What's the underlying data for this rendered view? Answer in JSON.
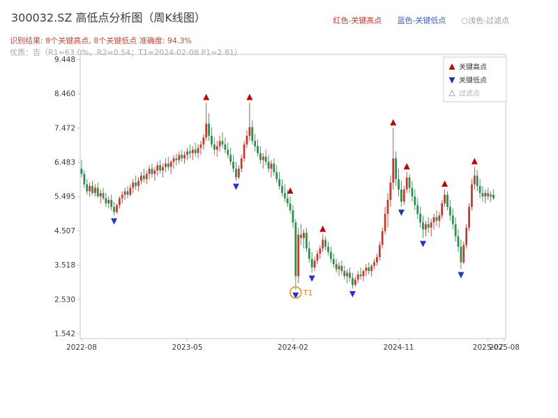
{
  "header": {
    "title": "300032.SZ 高低点分析图（周K线图）",
    "legend": [
      {
        "label": "红色-关键高点",
        "color": "#c0392b"
      },
      {
        "label": "蓝色-关键低点",
        "color": "#3a5fcd"
      },
      {
        "label": "○浅色-过滤点",
        "color": "#9a9a9a"
      }
    ],
    "result_line": "识别结果: 8个关键高点, 8个关键低点  准确度: 94.3%",
    "quality_line": "优质：否（R1=63.0%，R2=0.54；T1=2024-02-08 P1=2.81）"
  },
  "plot_legend": [
    {
      "label": "关键高点",
      "marker": "triangle-up",
      "color": "#c40000",
      "text_color": "#333333"
    },
    {
      "label": "关键低点",
      "marker": "triangle-down",
      "color": "#2433c8",
      "text_color": "#333333"
    },
    {
      "label": "过滤点",
      "marker": "triangle-up-outline",
      "color": "#aaaaaa",
      "text_color": "#b0b0b0"
    }
  ],
  "chart_data": {
    "type": "candlestick",
    "title": "300032.SZ 高低点分析图（周K线图）",
    "ylim": [
      1.542,
      9.448
    ],
    "y_ticks": [
      9.448,
      8.46,
      7.472,
      6.483,
      5.495,
      4.507,
      3.518,
      2.53,
      1.542
    ],
    "x_ticks": [
      {
        "label": "2022-08",
        "index": 0
      },
      {
        "label": "2023-05",
        "index": 39
      },
      {
        "label": "2024-02",
        "index": 78
      },
      {
        "label": "2024-11",
        "index": 117
      },
      {
        "label": "2025-07",
        "index": 150
      },
      {
        "label": "2025-08",
        "index": 156
      }
    ],
    "colors": {
      "up": "#c23b2e",
      "down": "#2f8f4e",
      "high_marker": "#c40000",
      "low_marker": "#2433c8",
      "t1": "#e8a33d",
      "t1_text": "#d9861f",
      "axis": "#c4c4c4",
      "tick_text": "#3a3a3a"
    },
    "key_highs": [
      46,
      62,
      77,
      89,
      115,
      120,
      134,
      145
    ],
    "key_lows": [
      12,
      57,
      79,
      85,
      100,
      118,
      126,
      140
    ],
    "t1": {
      "index": 79,
      "price": 2.81,
      "label": "T1"
    },
    "candles": [
      [
        6.3,
        6.55,
        6.05,
        6.15
      ],
      [
        6.15,
        6.25,
        5.75,
        5.85
      ],
      [
        5.85,
        6.0,
        5.55,
        5.65
      ],
      [
        5.65,
        5.9,
        5.5,
        5.8
      ],
      [
        5.8,
        5.95,
        5.55,
        5.6
      ],
      [
        5.6,
        5.85,
        5.5,
        5.75
      ],
      [
        5.75,
        5.9,
        5.45,
        5.5
      ],
      [
        5.5,
        5.7,
        5.3,
        5.6
      ],
      [
        5.6,
        5.75,
        5.4,
        5.45
      ],
      [
        5.45,
        5.6,
        5.2,
        5.3
      ],
      [
        5.3,
        5.5,
        5.15,
        5.4
      ],
      [
        5.4,
        5.55,
        5.1,
        5.2
      ],
      [
        5.2,
        5.35,
        4.95,
        5.05
      ],
      [
        5.05,
        5.3,
        5.0,
        5.25
      ],
      [
        5.25,
        5.5,
        5.15,
        5.45
      ],
      [
        5.45,
        5.65,
        5.3,
        5.55
      ],
      [
        5.55,
        5.75,
        5.4,
        5.65
      ],
      [
        5.65,
        5.8,
        5.45,
        5.55
      ],
      [
        5.55,
        5.85,
        5.5,
        5.75
      ],
      [
        5.75,
        6.0,
        5.6,
        5.9
      ],
      [
        5.9,
        6.1,
        5.7,
        5.8
      ],
      [
        5.8,
        6.05,
        5.65,
        5.95
      ],
      [
        5.95,
        6.2,
        5.85,
        6.1
      ],
      [
        6.1,
        6.3,
        5.9,
        6.0
      ],
      [
        6.0,
        6.25,
        5.85,
        6.15
      ],
      [
        6.15,
        6.4,
        6.0,
        6.3
      ],
      [
        6.3,
        6.45,
        6.05,
        6.15
      ],
      [
        6.15,
        6.35,
        5.95,
        6.25
      ],
      [
        6.25,
        6.5,
        6.1,
        6.4
      ],
      [
        6.4,
        6.55,
        6.15,
        6.25
      ],
      [
        6.25,
        6.45,
        6.05,
        6.35
      ],
      [
        6.35,
        6.6,
        6.2,
        6.45
      ],
      [
        6.45,
        6.65,
        6.25,
        6.35
      ],
      [
        6.35,
        6.55,
        6.15,
        6.5
      ],
      [
        6.5,
        6.7,
        6.3,
        6.6
      ],
      [
        6.6,
        6.75,
        6.4,
        6.55
      ],
      [
        6.55,
        6.8,
        6.45,
        6.7
      ],
      [
        6.7,
        6.85,
        6.5,
        6.6
      ],
      [
        6.6,
        6.8,
        6.45,
        6.7
      ],
      [
        6.7,
        6.9,
        6.55,
        6.8
      ],
      [
        6.8,
        7.0,
        6.6,
        6.75
      ],
      [
        6.75,
        6.95,
        6.55,
        6.85
      ],
      [
        6.85,
        7.05,
        6.65,
        6.75
      ],
      [
        6.75,
        7.0,
        6.6,
        6.9
      ],
      [
        6.9,
        7.1,
        6.7,
        7.0
      ],
      [
        7.0,
        7.3,
        6.85,
        7.2
      ],
      [
        7.2,
        8.2,
        7.1,
        7.6
      ],
      [
        7.6,
        7.9,
        7.1,
        7.25
      ],
      [
        7.25,
        7.5,
        6.9,
        7.0
      ],
      [
        7.0,
        7.2,
        6.7,
        6.85
      ],
      [
        6.85,
        7.1,
        6.65,
        6.95
      ],
      [
        6.95,
        7.25,
        6.8,
        7.1
      ],
      [
        7.1,
        7.35,
        6.9,
        7.0
      ],
      [
        7.0,
        7.2,
        6.75,
        6.85
      ],
      [
        6.85,
        7.05,
        6.6,
        6.7
      ],
      [
        6.7,
        6.9,
        6.4,
        6.5
      ],
      [
        6.5,
        6.7,
        6.2,
        6.3
      ],
      [
        6.3,
        6.5,
        5.95,
        6.05
      ],
      [
        6.05,
        6.4,
        6.0,
        6.3
      ],
      [
        6.3,
        6.7,
        6.2,
        6.6
      ],
      [
        6.6,
        7.1,
        6.5,
        7.0
      ],
      [
        7.0,
        7.4,
        6.9,
        7.25
      ],
      [
        7.25,
        8.2,
        7.1,
        7.5
      ],
      [
        7.5,
        7.7,
        7.0,
        7.1
      ],
      [
        7.1,
        7.3,
        6.8,
        6.95
      ],
      [
        6.95,
        7.15,
        6.65,
        6.75
      ],
      [
        6.75,
        6.95,
        6.45,
        6.55
      ],
      [
        6.55,
        6.75,
        6.3,
        6.65
      ],
      [
        6.65,
        6.85,
        6.4,
        6.5
      ],
      [
        6.5,
        6.7,
        6.2,
        6.3
      ],
      [
        6.3,
        6.55,
        6.05,
        6.45
      ],
      [
        6.45,
        6.6,
        6.1,
        6.2
      ],
      [
        6.2,
        6.4,
        5.9,
        6.0
      ],
      [
        6.0,
        6.2,
        5.7,
        5.8
      ],
      [
        5.8,
        6.0,
        5.5,
        5.6
      ],
      [
        5.6,
        5.85,
        5.35,
        5.45
      ],
      [
        5.45,
        5.7,
        5.2,
        5.3
      ],
      [
        5.3,
        5.5,
        5.0,
        5.1
      ],
      [
        5.1,
        5.25,
        4.6,
        4.75
      ],
      [
        4.75,
        4.85,
        2.81,
        3.2
      ],
      [
        3.2,
        4.6,
        3.0,
        4.4
      ],
      [
        4.4,
        4.7,
        4.1,
        4.3
      ],
      [
        4.3,
        4.55,
        4.0,
        4.45
      ],
      [
        4.45,
        4.6,
        3.9,
        4.0
      ],
      [
        4.0,
        4.2,
        3.6,
        3.7
      ],
      [
        3.7,
        3.9,
        3.3,
        3.45
      ],
      [
        3.45,
        3.75,
        3.35,
        3.65
      ],
      [
        3.65,
        3.95,
        3.55,
        3.85
      ],
      [
        3.85,
        4.1,
        3.7,
        4.0
      ],
      [
        4.0,
        4.4,
        3.9,
        4.25
      ],
      [
        4.25,
        4.35,
        3.95,
        4.05
      ],
      [
        4.05,
        4.2,
        3.8,
        3.9
      ],
      [
        3.9,
        4.05,
        3.6,
        3.7
      ],
      [
        3.7,
        3.85,
        3.45,
        3.55
      ],
      [
        3.55,
        3.7,
        3.3,
        3.4
      ],
      [
        3.4,
        3.6,
        3.2,
        3.5
      ],
      [
        3.5,
        3.65,
        3.25,
        3.35
      ],
      [
        3.35,
        3.5,
        3.1,
        3.2
      ],
      [
        3.2,
        3.4,
        3.0,
        3.3
      ],
      [
        3.3,
        3.45,
        3.05,
        3.15
      ],
      [
        3.15,
        3.3,
        2.85,
        2.95
      ],
      [
        2.95,
        3.2,
        2.9,
        3.1
      ],
      [
        3.1,
        3.35,
        3.0,
        3.25
      ],
      [
        3.25,
        3.45,
        3.1,
        3.2
      ],
      [
        3.2,
        3.4,
        3.05,
        3.35
      ],
      [
        3.35,
        3.55,
        3.2,
        3.45
      ],
      [
        3.45,
        3.6,
        3.25,
        3.35
      ],
      [
        3.35,
        3.55,
        3.2,
        3.5
      ],
      [
        3.5,
        3.7,
        3.4,
        3.6
      ],
      [
        3.6,
        3.85,
        3.5,
        3.75
      ],
      [
        3.75,
        4.2,
        3.65,
        4.1
      ],
      [
        4.1,
        4.6,
        4.0,
        4.5
      ],
      [
        4.5,
        5.2,
        4.4,
        5.0
      ],
      [
        5.0,
        5.6,
        4.6,
        5.4
      ],
      [
        5.4,
        6.1,
        5.2,
        5.9
      ],
      [
        5.9,
        7.47,
        5.7,
        6.6
      ],
      [
        6.6,
        6.8,
        5.8,
        6.0
      ],
      [
        6.0,
        6.3,
        5.5,
        5.7
      ],
      [
        5.7,
        5.95,
        5.2,
        5.35
      ],
      [
        5.35,
        5.8,
        5.25,
        5.7
      ],
      [
        5.7,
        6.2,
        5.6,
        6.05
      ],
      [
        6.05,
        6.15,
        5.6,
        5.75
      ],
      [
        5.75,
        5.95,
        5.35,
        5.5
      ],
      [
        5.5,
        5.7,
        5.1,
        5.25
      ],
      [
        5.25,
        5.45,
        4.85,
        5.0
      ],
      [
        5.0,
        5.2,
        4.6,
        4.75
      ],
      [
        4.75,
        4.95,
        4.3,
        4.55
      ],
      [
        4.55,
        4.8,
        4.35,
        4.7
      ],
      [
        4.7,
        4.9,
        4.45,
        4.6
      ],
      [
        4.6,
        4.85,
        4.35,
        4.75
      ],
      [
        4.75,
        5.0,
        4.55,
        4.9
      ],
      [
        4.9,
        5.1,
        4.65,
        4.8
      ],
      [
        4.8,
        5.05,
        4.6,
        4.95
      ],
      [
        4.95,
        5.4,
        4.85,
        5.3
      ],
      [
        5.3,
        5.7,
        5.2,
        5.55
      ],
      [
        5.55,
        5.65,
        5.1,
        5.2
      ],
      [
        5.2,
        5.4,
        4.8,
        4.95
      ],
      [
        4.95,
        5.15,
        4.55,
        4.7
      ],
      [
        4.7,
        4.9,
        4.2,
        4.35
      ],
      [
        4.35,
        4.55,
        3.9,
        4.05
      ],
      [
        4.05,
        4.25,
        3.4,
        3.6
      ],
      [
        3.6,
        4.2,
        3.55,
        4.1
      ],
      [
        4.1,
        4.7,
        4.0,
        4.6
      ],
      [
        4.6,
        5.3,
        4.5,
        5.2
      ],
      [
        5.2,
        6.0,
        5.1,
        5.85
      ],
      [
        5.85,
        6.35,
        5.7,
        6.1
      ],
      [
        6.1,
        6.25,
        5.65,
        5.8
      ],
      [
        5.8,
        6.0,
        5.45,
        5.6
      ],
      [
        5.6,
        5.8,
        5.35,
        5.5
      ],
      [
        5.5,
        5.7,
        5.3,
        5.6
      ],
      [
        5.6,
        5.75,
        5.4,
        5.5
      ],
      [
        5.5,
        5.65,
        5.35,
        5.55
      ],
      [
        5.55,
        5.7,
        5.4,
        5.45
      ]
    ]
  }
}
